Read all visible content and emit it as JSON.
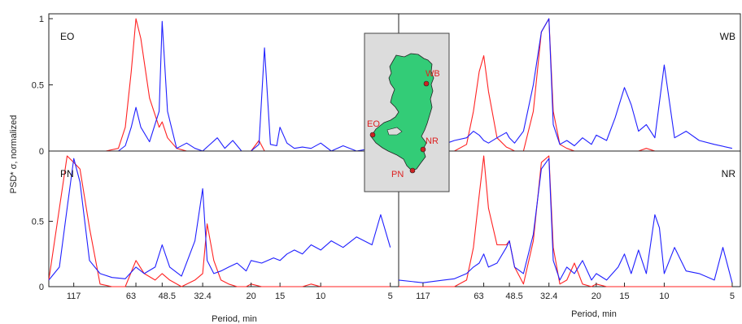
{
  "figure": {
    "ylabel": "PSD* σ, normalized",
    "xlabel_left": "Period, min",
    "xlabel_right": "Period, min"
  },
  "colors": {
    "red": "#ff2222",
    "blue": "#1f1fff",
    "land": "#33cc77",
    "inset_bg": "#dcdcdc",
    "marker": "#cc2222"
  },
  "inset": {
    "markers": [
      {
        "label": "WB"
      },
      {
        "label": "EO"
      },
      {
        "label": "NR"
      },
      {
        "label": "PN"
      }
    ]
  },
  "chart_data": [
    {
      "type": "line",
      "panel_label": "EO",
      "xlabel": "",
      "ylabel": "PSD* σ, normalized",
      "ylim": [
        0,
        1
      ],
      "yticks": [
        "0",
        "0.5",
        "1"
      ],
      "xticks": [],
      "x": [
        150,
        117,
        95,
        85,
        75,
        70,
        66,
        63,
        60,
        55,
        50,
        48.5,
        46,
        42,
        38,
        35,
        32.4,
        28,
        26,
        24,
        22,
        20,
        18.5,
        17.5,
        16.5,
        15.5,
        15,
        14,
        13,
        12,
        11,
        10,
        9,
        8,
        7,
        6,
        5
      ],
      "series": [
        {
          "name": "",
          "color": "red",
          "values": [
            0.0,
            0.0,
            0.0,
            0.0,
            0.02,
            0.18,
            0.6,
            1.0,
            0.85,
            0.4,
            0.18,
            0.22,
            0.1,
            0.02,
            0.0,
            0.0,
            0.0,
            0.0,
            0.0,
            0.0,
            0.0,
            0.0,
            0.08,
            0.0,
            0.0,
            0.0,
            0.0,
            0.0,
            0.0,
            0.0,
            0.0,
            0.0,
            0.0,
            0.0,
            0.0,
            0.0,
            0.0
          ]
        },
        {
          "name": "",
          "color": "blue",
          "values": [
            0.0,
            0.0,
            0.0,
            0.0,
            0.0,
            0.04,
            0.18,
            0.33,
            0.18,
            0.07,
            0.3,
            0.98,
            0.3,
            0.02,
            0.06,
            0.02,
            0.0,
            0.1,
            0.02,
            0.08,
            0.0,
            0.0,
            0.05,
            0.78,
            0.05,
            0.04,
            0.18,
            0.06,
            0.02,
            0.03,
            0.02,
            0.06,
            0.0,
            0.04,
            0.0,
            0.02,
            0.0
          ]
        }
      ]
    },
    {
      "type": "line",
      "panel_label": "WB",
      "xlabel": "",
      "ylabel": "",
      "ylim": [
        0,
        1
      ],
      "yticks": [],
      "xticks": [],
      "x": [
        150,
        117,
        95,
        85,
        75,
        70,
        66,
        63,
        60,
        55,
        50,
        48.5,
        46,
        42,
        38,
        35,
        32.4,
        31,
        29,
        27,
        25,
        23,
        21,
        20,
        18,
        16.5,
        15,
        14,
        13,
        12,
        11,
        10,
        9,
        8,
        7,
        6,
        5
      ],
      "series": [
        {
          "name": "",
          "color": "red",
          "values": [
            0.0,
            0.0,
            0.0,
            0.0,
            0.05,
            0.3,
            0.6,
            0.72,
            0.45,
            0.1,
            0.03,
            0.02,
            0.0,
            0.0,
            0.3,
            0.9,
            1.0,
            0.3,
            0.05,
            0.02,
            0.0,
            0.0,
            0.0,
            0.0,
            0.0,
            0.0,
            0.0,
            0.0,
            0.0,
            0.02,
            0.0,
            0.0,
            0.0,
            0.0,
            0.0,
            0.0,
            0.0
          ]
        },
        {
          "name": "",
          "color": "blue",
          "values": [
            0.06,
            0.04,
            0.05,
            0.08,
            0.1,
            0.15,
            0.12,
            0.08,
            0.06,
            0.1,
            0.14,
            0.1,
            0.06,
            0.15,
            0.5,
            0.9,
            1.0,
            0.2,
            0.05,
            0.08,
            0.04,
            0.1,
            0.05,
            0.12,
            0.08,
            0.25,
            0.48,
            0.35,
            0.15,
            0.2,
            0.1,
            0.65,
            0.1,
            0.15,
            0.08,
            0.05,
            0.02
          ]
        }
      ]
    },
    {
      "type": "line",
      "panel_label": "PN",
      "xlabel": "Period, min",
      "ylabel": "",
      "ylim": [
        0,
        1
      ],
      "yticks": [
        "0",
        "0.5"
      ],
      "xticks": [
        "117",
        "63",
        "48.5",
        "32.4",
        "20",
        "15",
        "10",
        "5"
      ],
      "x": [
        150,
        135,
        125,
        117,
        110,
        100,
        90,
        80,
        70,
        63,
        58,
        52,
        48.5,
        45,
        40,
        35,
        32.4,
        31,
        29,
        27,
        25,
        23,
        21,
        20,
        18,
        16,
        15,
        14,
        13,
        12,
        11,
        10,
        9,
        8,
        7,
        6,
        5.5,
        5
      ],
      "series": [
        {
          "name": "",
          "color": "red",
          "values": [
            0.05,
            0.6,
            1.0,
            0.95,
            0.9,
            0.45,
            0.02,
            0.0,
            0.0,
            0.2,
            0.1,
            0.05,
            0.1,
            0.05,
            0.0,
            0.05,
            0.1,
            0.48,
            0.2,
            0.05,
            0.02,
            0.0,
            0.0,
            0.02,
            0.0,
            0.0,
            0.0,
            0.0,
            0.0,
            0.0,
            0.02,
            0.0,
            0.0,
            0.0,
            0.0,
            0.0,
            0.0,
            0.0
          ]
        },
        {
          "name": "",
          "color": "blue",
          "values": [
            0.05,
            0.15,
            0.6,
            0.98,
            0.8,
            0.2,
            0.1,
            0.07,
            0.06,
            0.15,
            0.1,
            0.15,
            0.32,
            0.15,
            0.08,
            0.35,
            0.75,
            0.2,
            0.1,
            0.12,
            0.15,
            0.18,
            0.12,
            0.2,
            0.18,
            0.22,
            0.2,
            0.25,
            0.28,
            0.25,
            0.32,
            0.28,
            0.35,
            0.3,
            0.38,
            0.32,
            0.55,
            0.3
          ]
        }
      ]
    },
    {
      "type": "line",
      "panel_label": "NR",
      "xlabel": "Period, min",
      "ylabel": "",
      "ylim": [
        0,
        1
      ],
      "yticks": [],
      "xticks": [
        "117",
        "63",
        "48.5",
        "32.4",
        "20",
        "15",
        "10",
        "5"
      ],
      "x": [
        150,
        117,
        95,
        85,
        75,
        70,
        66,
        63,
        60,
        55,
        50,
        48.5,
        46,
        42,
        38,
        35,
        32.4,
        31,
        29,
        27,
        25,
        23,
        21,
        20,
        18,
        16,
        15,
        14,
        13,
        12,
        11,
        10.5,
        10,
        9,
        8,
        7,
        6,
        5.5,
        5
      ],
      "series": [
        {
          "name": "",
          "color": "red",
          "values": [
            0.0,
            0.0,
            0.0,
            0.0,
            0.05,
            0.3,
            0.7,
            1.0,
            0.6,
            0.32,
            0.32,
            0.35,
            0.15,
            0.02,
            0.35,
            0.95,
            1.0,
            0.3,
            0.02,
            0.05,
            0.18,
            0.02,
            0.0,
            0.02,
            0.0,
            0.0,
            0.0,
            0.0,
            0.0,
            0.0,
            0.0,
            0.0,
            0.0,
            0.0,
            0.0,
            0.0,
            0.0,
            0.0,
            0.0
          ]
        },
        {
          "name": "",
          "color": "blue",
          "values": [
            0.05,
            0.03,
            0.05,
            0.06,
            0.1,
            0.15,
            0.18,
            0.25,
            0.15,
            0.18,
            0.3,
            0.35,
            0.15,
            0.1,
            0.4,
            0.9,
            0.98,
            0.2,
            0.05,
            0.15,
            0.1,
            0.2,
            0.05,
            0.1,
            0.05,
            0.15,
            0.25,
            0.1,
            0.28,
            0.1,
            0.55,
            0.45,
            0.1,
            0.3,
            0.12,
            0.1,
            0.05,
            0.3,
            0.03
          ]
        }
      ]
    }
  ]
}
